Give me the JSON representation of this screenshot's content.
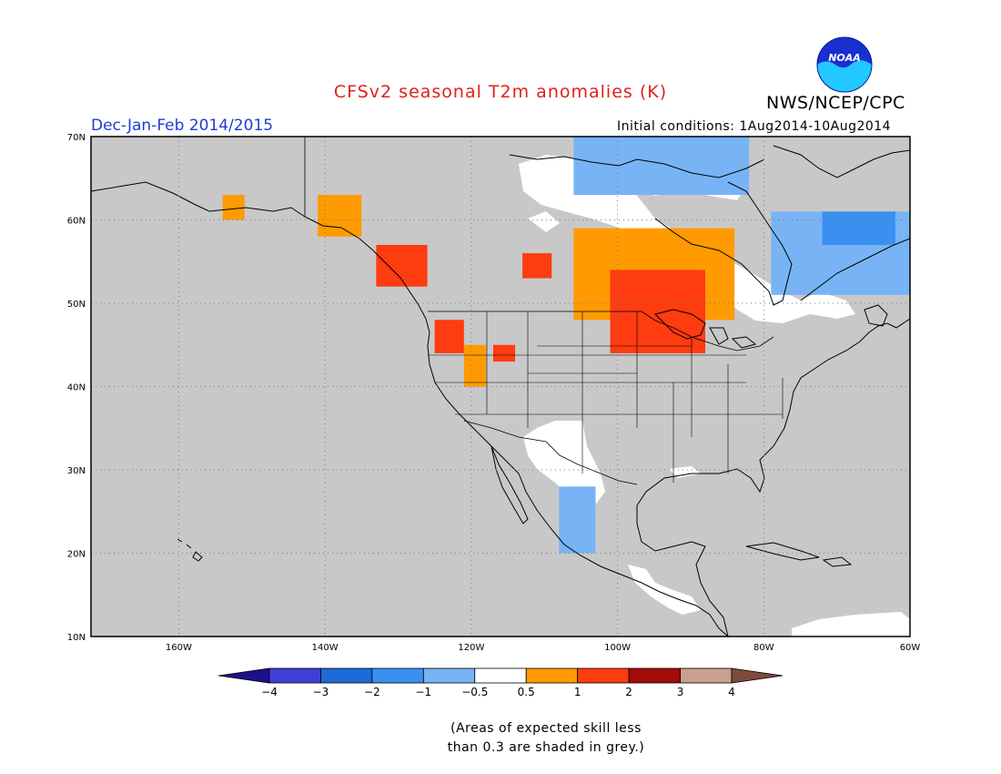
{
  "header": {
    "title": "CFSv2 seasonal T2m anomalies (K)",
    "organization": "NWS/NCEP/CPC",
    "season": "Dec-Jan-Feb 2014/2015",
    "initial_conditions": "Initial conditions: 1Aug2014-10Aug2014",
    "logo_text": "NOAA",
    "logo_icon": "noaa-logo-icon"
  },
  "map": {
    "lon_range": [
      -172,
      -60
    ],
    "lat_range": [
      10,
      70
    ],
    "lon_labels": [
      "160W",
      "140W",
      "120W",
      "100W",
      "80W",
      "60W"
    ],
    "lat_labels": [
      "10N",
      "20N",
      "30N",
      "40N",
      "50N",
      "60N",
      "70N"
    ],
    "grid": "dotted",
    "background_color": "#c8c8c8"
  },
  "colorbar": {
    "tick_labels": [
      "−4",
      "−3",
      "−2",
      "−1",
      "−0.5",
      "0.5",
      "1",
      "2",
      "3",
      "4"
    ],
    "colors": [
      "#1e0f8c",
      "#3f3fd6",
      "#1d69d6",
      "#3b8ff0",
      "#78b4f5",
      "#ffffff",
      "#ff9b00",
      "#ff3b10",
      "#a30a0a",
      "#c9a08e",
      "#7d4a3c"
    ]
  },
  "note": {
    "line1": "(Areas of expected skill less",
    "line2": "than 0.3 are shaded in grey.)"
  },
  "anomaly_regions": [
    {
      "name": "warm-alaska-yukon",
      "class": "0.5 to 1",
      "color": "#ff9b00",
      "lon": [
        -141,
        -135
      ],
      "lat": [
        58,
        63
      ]
    },
    {
      "name": "warm-alaska-west",
      "class": "0.5 to 1",
      "color": "#ff9b00",
      "lon": [
        -154,
        -151
      ],
      "lat": [
        60,
        63
      ]
    },
    {
      "name": "hot-bc-coast",
      "class": "1 to 2",
      "color": "#ff3b10",
      "lon": [
        -133,
        -126
      ],
      "lat": [
        52,
        57
      ]
    },
    {
      "name": "hot-pacific-nw",
      "class": "1 to 2",
      "color": "#ff3b10",
      "lon": [
        -125,
        -121
      ],
      "lat": [
        44,
        48
      ]
    },
    {
      "name": "hot-idaho",
      "class": "1 to 2",
      "color": "#ff3b10",
      "lon": [
        -117,
        -114
      ],
      "lat": [
        43,
        45
      ]
    },
    {
      "name": "warm-oregon",
      "class": "0.5 to 1",
      "color": "#ff9b00",
      "lon": [
        -121,
        -118
      ],
      "lat": [
        40,
        45
      ]
    },
    {
      "name": "hot-saskatchewan",
      "class": "1 to 2",
      "color": "#ff3b10",
      "lon": [
        -113,
        -109
      ],
      "lat": [
        53,
        56
      ]
    },
    {
      "name": "warm-manitoba-ontario",
      "class": "0.5 to 1",
      "color": "#ff9b00",
      "lon": [
        -106,
        -84
      ],
      "lat": [
        48,
        59
      ]
    },
    {
      "name": "hot-great-lakes",
      "class": "1 to 2",
      "color": "#ff3b10",
      "lon": [
        -101,
        -88
      ],
      "lat": [
        44,
        54
      ]
    },
    {
      "name": "cool-quebec-labrador",
      "class": "-1 to -0.5",
      "color": "#78b4f5",
      "lon": [
        -79,
        -60
      ],
      "lat": [
        51,
        61
      ]
    },
    {
      "name": "cool-hudson-strait",
      "class": "-2 to -1",
      "color": "#3b8ff0",
      "lon": [
        -72,
        -62
      ],
      "lat": [
        57,
        61
      ]
    },
    {
      "name": "cool-arctic-islands",
      "class": "-1 to -0.5",
      "color": "#78b4f5",
      "lon": [
        -106,
        -82
      ],
      "lat": [
        63,
        70
      ]
    },
    {
      "name": "cool-mexico",
      "class": "-1 to -0.5",
      "color": "#78b4f5",
      "lon": [
        -108,
        -103
      ],
      "lat": [
        20,
        28
      ]
    }
  ]
}
